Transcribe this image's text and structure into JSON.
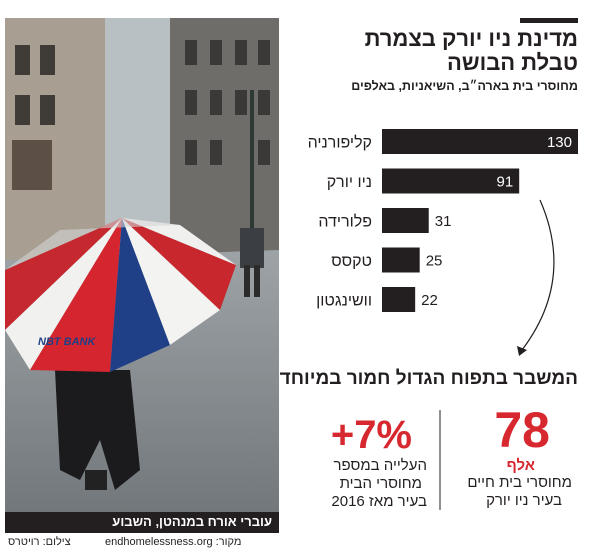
{
  "chart_data": {
    "type": "bar",
    "orientation": "horizontal",
    "title": "מדינת ניו יורק בצמרת טבלת הבושה",
    "subtitle": "מחוסרי בית בארה״ב, השיאניות, באלפים",
    "categories": [
      "קליפורניה",
      "ניו יורק",
      "פלורידה",
      "טקסס",
      "וושינגטון"
    ],
    "values": [
      130,
      91,
      31,
      25,
      22
    ],
    "color": "#231f20",
    "xlim": [
      0,
      130
    ]
  },
  "headline": "המשבר בתפוח הגדול חמור במיוחד",
  "stats": [
    {
      "value": "78",
      "unit": "אלף",
      "lines": [
        "מחוסרי בית חיים",
        "בעיר ניו יורק"
      ]
    },
    {
      "value": "+7%",
      "lines": [
        "העלייה במספר",
        "מחוסרי הבית",
        "בעיר מאז 2016"
      ]
    }
  ],
  "photo_caption": "עוברי אורח במנהטן, השבוע",
  "photo_credit": "צילום: רויטרס",
  "source": "מקור: endhomelessness.org"
}
